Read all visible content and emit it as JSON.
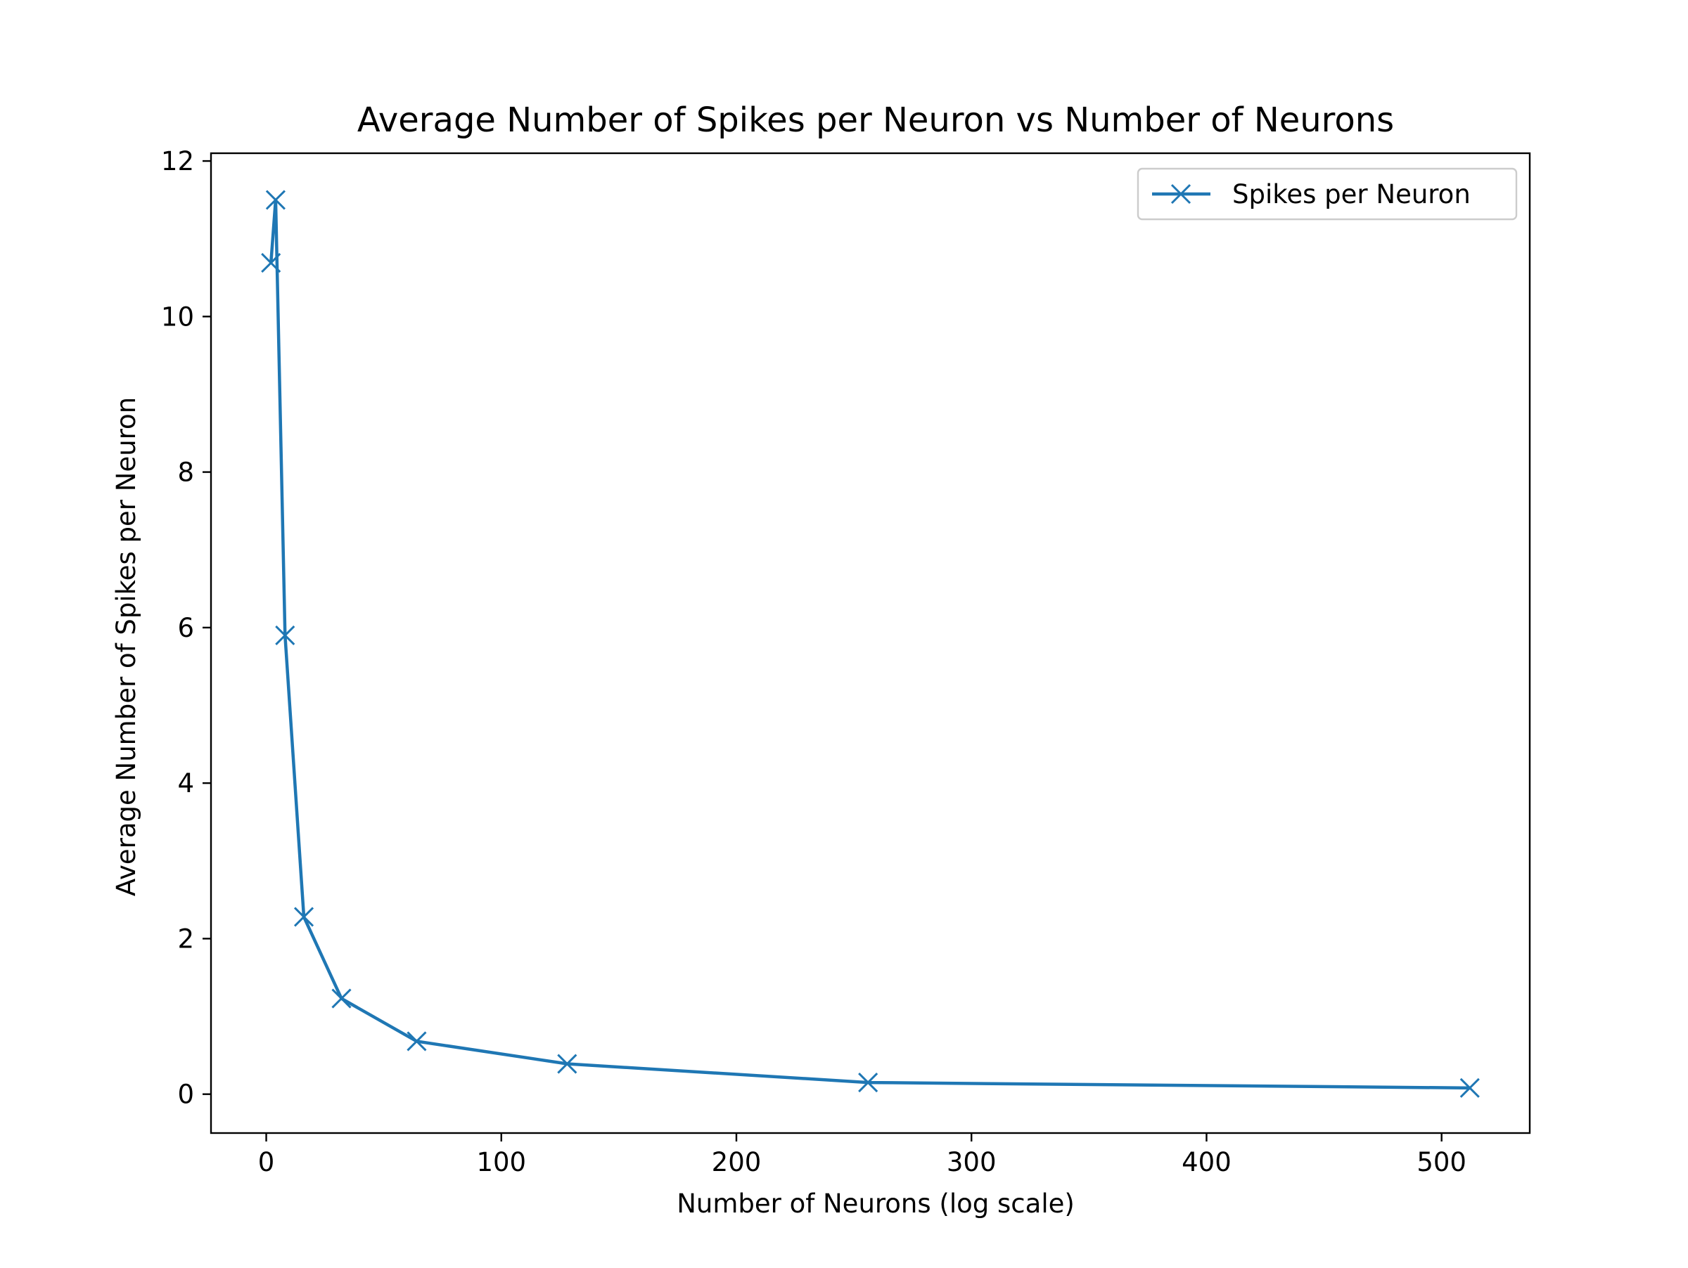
{
  "chart_data": {
    "type": "line",
    "title": "Average Number of Spikes per Neuron vs Number of Neurons",
    "xlabel": "Number of Neurons (log scale)",
    "ylabel": "Average Number of Spikes per Neuron",
    "xlim": [
      -23.5,
      537.5
    ],
    "ylim": [
      -0.5,
      12.1
    ],
    "x_ticks": [
      0,
      100,
      200,
      300,
      400,
      500
    ],
    "x_tick_labels": [
      "0",
      "100",
      "200",
      "300",
      "400",
      "500"
    ],
    "y_ticks": [
      0,
      2,
      4,
      6,
      8,
      10,
      12
    ],
    "y_tick_labels": [
      "0",
      "2",
      "4",
      "6",
      "8",
      "10",
      "12"
    ],
    "grid": false,
    "legend_position": "top-right",
    "series": [
      {
        "name": "Spikes per Neuron",
        "color": "#1f77b4",
        "marker": "x",
        "x": [
          2,
          4,
          8,
          16,
          32,
          64,
          128,
          256,
          512
        ],
        "y": [
          10.69,
          11.5,
          5.9,
          2.28,
          1.23,
          0.68,
          0.39,
          0.15,
          0.08
        ]
      }
    ]
  }
}
